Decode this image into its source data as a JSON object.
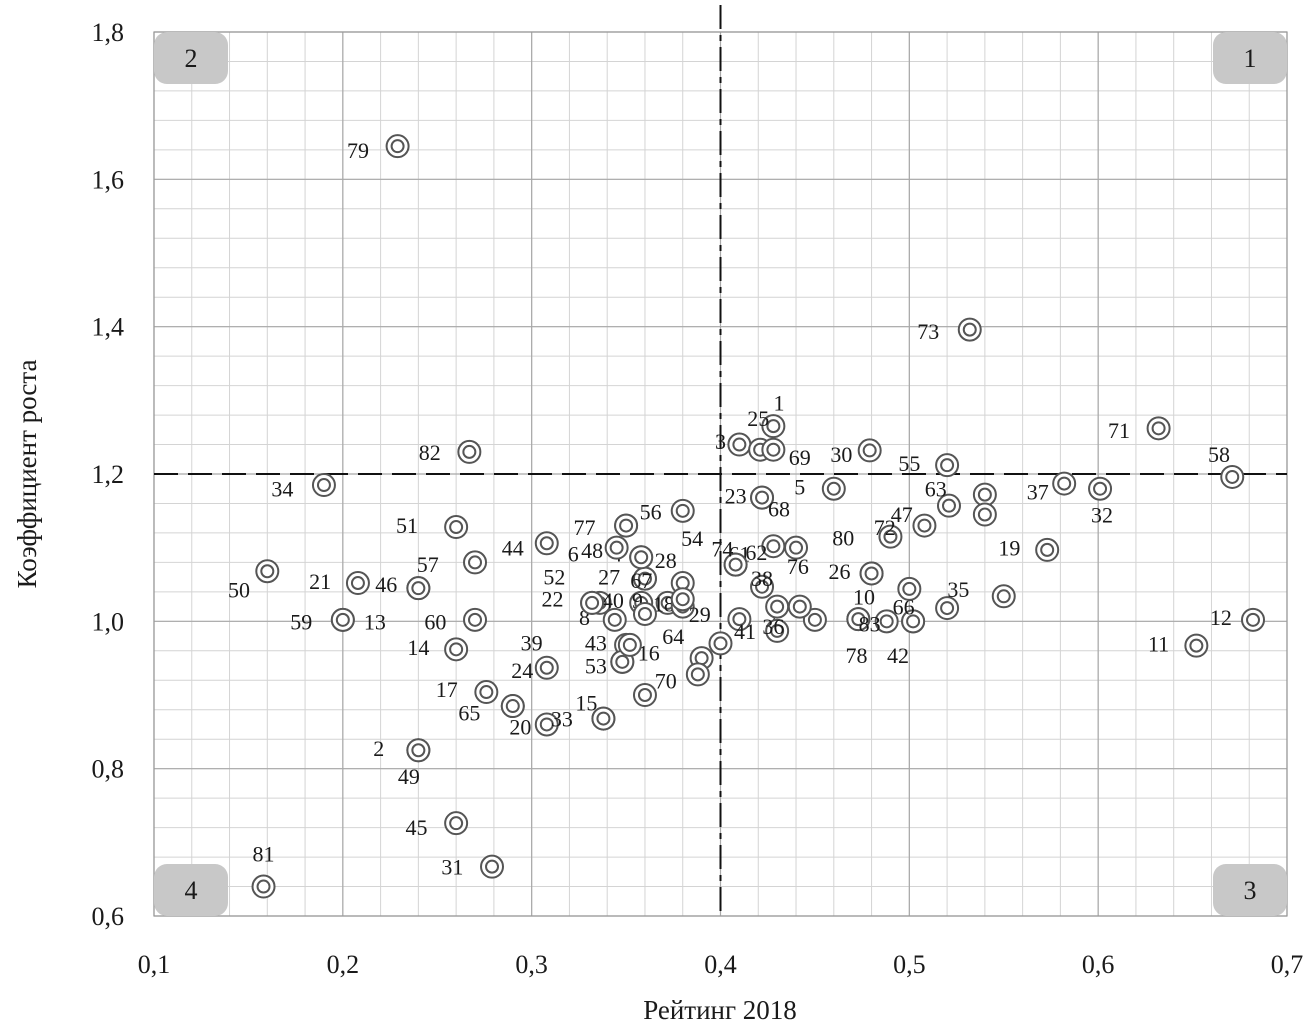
{
  "chart_data": {
    "type": "scatter",
    "xlabel": "Рейтинг 2018",
    "ylabel": "Коэффициент роста",
    "xlim": [
      0.1,
      0.7
    ],
    "ylim": [
      0.6,
      1.8
    ],
    "x_ticks": [
      "0,1",
      "0,2",
      "0,3",
      "0,4",
      "0,5",
      "0,6",
      "0,7"
    ],
    "y_ticks": [
      "0,6",
      "0,8",
      "1,0",
      "1,2",
      "1,4",
      "1,6",
      "1,8"
    ],
    "grid": true,
    "threshold_x": 0.4,
    "threshold_y": 1.2,
    "quadrants": [
      {
        "label": "1",
        "corner": "top-right"
      },
      {
        "label": "2",
        "corner": "top-left"
      },
      {
        "label": "3",
        "corner": "bottom-right"
      },
      {
        "label": "4",
        "corner": "bottom-left"
      }
    ],
    "points": [
      {
        "id": "1",
        "x": 0.428,
        "y": 1.265,
        "lx": 0.431,
        "ly": 1.297
      },
      {
        "id": "2",
        "x": 0.24,
        "y": 0.825,
        "lx": 0.219,
        "ly": 0.828
      },
      {
        "id": "3",
        "x": 0.41,
        "y": 1.24,
        "lx": 0.4,
        "ly": 1.245
      },
      {
        "id": "4",
        "x": 0.358,
        "y": 1.087,
        "lx": 0.345,
        "ly": 1.092
      },
      {
        "id": "5",
        "x": 0.46,
        "y": 1.18,
        "lx": 0.442,
        "ly": 1.183
      },
      {
        "id": "6",
        "x": 0.308,
        "y": 1.106,
        "lx": 0.322,
        "ly": 1.092
      },
      {
        "id": "7",
        "x": 0.41,
        "y": 1.003,
        "lx": 0.428,
        "ly": 1.006
      },
      {
        "id": "8",
        "x": 0.344,
        "y": 1.002,
        "lx": 0.328,
        "ly": 1.006
      },
      {
        "id": "9",
        "x": 0.358,
        "y": 1.025,
        "lx": 0.356,
        "ly": 1.029
      },
      {
        "id": "10",
        "x": 0.473,
        "y": 1.003,
        "lx": 0.476,
        "ly": 1.034
      },
      {
        "id": "11",
        "x": 0.652,
        "y": 0.967,
        "lx": 0.632,
        "ly": 0.97
      },
      {
        "id": "12",
        "x": 0.682,
        "y": 1.002,
        "lx": 0.665,
        "ly": 1.006
      },
      {
        "id": "13",
        "x": 0.2,
        "y": 1.002,
        "lx": 0.217,
        "ly": 1.0
      },
      {
        "id": "14",
        "x": 0.26,
        "y": 0.962,
        "lx": 0.24,
        "ly": 0.965
      },
      {
        "id": "15",
        "x": 0.338,
        "y": 0.868,
        "lx": 0.329,
        "ly": 0.89
      },
      {
        "id": "16",
        "x": 0.348,
        "y": 0.945,
        "lx": 0.362,
        "ly": 0.958
      },
      {
        "id": "17",
        "x": 0.276,
        "y": 0.904,
        "lx": 0.255,
        "ly": 0.908
      },
      {
        "id": "18",
        "x": 0.372,
        "y": 1.025,
        "lx": 0.37,
        "ly": 1.024
      },
      {
        "id": "19",
        "x": 0.573,
        "y": 1.097,
        "lx": 0.553,
        "ly": 1.1
      },
      {
        "id": "20",
        "x": 0.308,
        "y": 0.86,
        "lx": 0.294,
        "ly": 0.857
      },
      {
        "id": "21",
        "x": 0.208,
        "y": 1.052,
        "lx": 0.188,
        "ly": 1.055
      },
      {
        "id": "22",
        "x": 0.332,
        "y": 1.025,
        "lx": 0.311,
        "ly": 1.031
      },
      {
        "id": "23",
        "x": 0.422,
        "y": 1.168,
        "lx": 0.408,
        "ly": 1.171
      },
      {
        "id": "24",
        "x": 0.29,
        "y": 0.885,
        "lx": 0.295,
        "ly": 0.934
      },
      {
        "id": "25",
        "x": 0.421,
        "y": 1.233,
        "lx": 0.42,
        "ly": 1.276
      },
      {
        "id": "26",
        "x": 0.48,
        "y": 1.065,
        "lx": 0.463,
        "ly": 1.068
      },
      {
        "id": "27",
        "x": 0.36,
        "y": 1.058,
        "lx": 0.341,
        "ly": 1.061
      },
      {
        "id": "28",
        "x": 0.38,
        "y": 1.052,
        "lx": 0.371,
        "ly": 1.083
      },
      {
        "id": "29",
        "x": 0.38,
        "y": 1.02,
        "lx": 0.389,
        "ly": 1.01
      },
      {
        "id": "30",
        "x": 0.479,
        "y": 1.232,
        "lx": 0.464,
        "ly": 1.227
      },
      {
        "id": "31",
        "x": 0.279,
        "y": 0.667,
        "lx": 0.258,
        "ly": 0.667
      },
      {
        "id": "32",
        "x": 0.601,
        "y": 1.18,
        "lx": 0.602,
        "ly": 1.145
      },
      {
        "id": "33",
        "x": 0.338,
        "y": 0.868,
        "lx": 0.316,
        "ly": 0.868
      },
      {
        "id": "34",
        "x": 0.19,
        "y": 1.185,
        "lx": 0.168,
        "ly": 1.18
      },
      {
        "id": "35",
        "x": 0.52,
        "y": 1.018,
        "lx": 0.526,
        "ly": 1.044
      },
      {
        "id": "36",
        "x": 0.43,
        "y": 0.987,
        "lx": 0.428,
        "ly": 0.994
      },
      {
        "id": "37",
        "x": 0.582,
        "y": 1.187,
        "lx": 0.568,
        "ly": 1.176
      },
      {
        "id": "38",
        "x": 0.422,
        "y": 1.047,
        "lx": 0.422,
        "ly": 1.059
      },
      {
        "id": "39",
        "x": 0.308,
        "y": 0.937,
        "lx": 0.3,
        "ly": 0.971
      },
      {
        "id": "40",
        "x": 0.336,
        "y": 1.025,
        "lx": 0.343,
        "ly": 1.029
      },
      {
        "id": "41",
        "x": 0.4,
        "y": 0.97,
        "lx": 0.413,
        "ly": 0.987
      },
      {
        "id": "42",
        "x": 0.502,
        "y": 1.0,
        "lx": 0.494,
        "ly": 0.954
      },
      {
        "id": "43",
        "x": 0.35,
        "y": 0.968,
        "lx": 0.334,
        "ly": 0.971
      },
      {
        "id": "44",
        "x": 0.27,
        "y": 1.08,
        "lx": 0.29,
        "ly": 1.1
      },
      {
        "id": "45",
        "x": 0.26,
        "y": 0.726,
        "lx": 0.239,
        "ly": 0.721
      },
      {
        "id": "46",
        "x": 0.24,
        "y": 1.045,
        "lx": 0.223,
        "ly": 1.051
      },
      {
        "id": "47",
        "x": 0.508,
        "y": 1.13,
        "lx": 0.496,
        "ly": 1.146
      },
      {
        "id": "48",
        "x": 0.345,
        "y": 1.1,
        "lx": 0.332,
        "ly": 1.097
      },
      {
        "id": "49",
        "x": 0.24,
        "y": 0.825,
        "lx": 0.235,
        "ly": 0.79
      },
      {
        "id": "50",
        "x": 0.16,
        "y": 1.068,
        "lx": 0.145,
        "ly": 1.043
      },
      {
        "id": "51",
        "x": 0.26,
        "y": 1.128,
        "lx": 0.234,
        "ly": 1.131
      },
      {
        "id": "52",
        "x": 0.332,
        "y": 1.025,
        "lx": 0.312,
        "ly": 1.061
      },
      {
        "id": "53",
        "x": 0.348,
        "y": 0.945,
        "lx": 0.334,
        "ly": 0.94
      },
      {
        "id": "54",
        "x": 0.38,
        "y": 1.15,
        "lx": 0.385,
        "ly": 1.113
      },
      {
        "id": "55",
        "x": 0.52,
        "y": 1.212,
        "lx": 0.5,
        "ly": 1.215
      },
      {
        "id": "56",
        "x": 0.35,
        "y": 1.13,
        "lx": 0.363,
        "ly": 1.149
      },
      {
        "id": "57",
        "x": 0.24,
        "y": 1.045,
        "lx": 0.245,
        "ly": 1.078
      },
      {
        "id": "58",
        "x": 0.671,
        "y": 1.196,
        "lx": 0.664,
        "ly": 1.227
      },
      {
        "id": "59",
        "x": 0.2,
        "y": 1.002,
        "lx": 0.178,
        "ly": 1.0
      },
      {
        "id": "60",
        "x": 0.27,
        "y": 1.002,
        "lx": 0.249,
        "ly": 1.0
      },
      {
        "id": "61",
        "x": 0.408,
        "y": 1.077,
        "lx": 0.41,
        "ly": 1.092
      },
      {
        "id": "62",
        "x": 0.428,
        "y": 1.102,
        "lx": 0.419,
        "ly": 1.094
      },
      {
        "id": "63",
        "x": 0.521,
        "y": 1.157,
        "lx": 0.514,
        "ly": 1.18
      },
      {
        "id": "64",
        "x": 0.39,
        "y": 0.95,
        "lx": 0.375,
        "ly": 0.98
      },
      {
        "id": "65",
        "x": 0.29,
        "y": 0.885,
        "lx": 0.267,
        "ly": 0.876
      },
      {
        "id": "66",
        "x": 0.502,
        "y": 1.0,
        "lx": 0.497,
        "ly": 1.02
      },
      {
        "id": "67",
        "x": 0.36,
        "y": 1.058,
        "lx": 0.358,
        "ly": 1.056
      },
      {
        "id": "68",
        "x": 0.422,
        "y": 1.168,
        "lx": 0.431,
        "ly": 1.153
      },
      {
        "id": "69",
        "x": 0.428,
        "y": 1.233,
        "lx": 0.442,
        "ly": 1.223
      },
      {
        "id": "70",
        "x": 0.36,
        "y": 0.9,
        "lx": 0.371,
        "ly": 0.92
      },
      {
        "id": "71",
        "x": 0.632,
        "y": 1.262,
        "lx": 0.611,
        "ly": 1.26
      },
      {
        "id": "72",
        "x": 0.49,
        "y": 1.115,
        "lx": 0.487,
        "ly": 1.128
      },
      {
        "id": "73",
        "x": 0.532,
        "y": 1.396,
        "lx": 0.51,
        "ly": 1.394
      },
      {
        "id": "74",
        "x": 0.408,
        "y": 1.077,
        "lx": 0.401,
        "ly": 1.099
      },
      {
        "id": "76",
        "x": 0.44,
        "y": 1.1,
        "lx": 0.441,
        "ly": 1.075
      },
      {
        "id": "77",
        "x": 0.35,
        "y": 1.13,
        "lx": 0.328,
        "ly": 1.128
      },
      {
        "id": "78",
        "x": 0.473,
        "y": 1.003,
        "lx": 0.472,
        "ly": 0.954
      },
      {
        "id": "80",
        "x": 0.48,
        "y": 1.065,
        "lx": 0.465,
        "ly": 1.114
      },
      {
        "id": "81",
        "x": 0.158,
        "y": 0.64,
        "lx": 0.158,
        "ly": 0.685
      },
      {
        "id": "82",
        "x": 0.267,
        "y": 1.23,
        "lx": 0.246,
        "ly": 1.23
      },
      {
        "id": "83",
        "x": 0.488,
        "y": 1.0,
        "lx": 0.479,
        "ly": 0.997
      },
      {
        "id": "79",
        "x": 0.229,
        "y": 1.645,
        "lx": 0.208,
        "ly": 1.64
      },
      {
        "id": "",
        "x": 0.388,
        "y": 0.928,
        "lx": 0.0,
        "ly": 0.0
      },
      {
        "id": "",
        "x": 0.55,
        "y": 1.034,
        "lx": 0.0,
        "ly": 0.0
      },
      {
        "id": "",
        "x": 0.54,
        "y": 1.172,
        "lx": 0.0,
        "ly": 0.0
      },
      {
        "id": "",
        "x": 0.54,
        "y": 1.145,
        "lx": 0.0,
        "ly": 0.0
      },
      {
        "id": "",
        "x": 0.5,
        "y": 1.044,
        "lx": 0.0,
        "ly": 0.0
      },
      {
        "id": "",
        "x": 0.45,
        "y": 1.002,
        "lx": 0.0,
        "ly": 0.0
      },
      {
        "id": "",
        "x": 0.442,
        "y": 1.02,
        "lx": 0.0,
        "ly": 0.0
      },
      {
        "id": "",
        "x": 0.43,
        "y": 1.02,
        "lx": 0.0,
        "ly": 0.0
      },
      {
        "id": "",
        "x": 0.36,
        "y": 1.01,
        "lx": 0.0,
        "ly": 0.0
      },
      {
        "id": "",
        "x": 0.352,
        "y": 0.968,
        "lx": 0.0,
        "ly": 0.0
      },
      {
        "id": "",
        "x": 0.38,
        "y": 1.03,
        "lx": 0.0,
        "ly": 0.0
      },
      {
        "id": "",
        "x": 0.358,
        "y": 1.087,
        "lx": 0.0,
        "ly": 0.0
      }
    ]
  }
}
